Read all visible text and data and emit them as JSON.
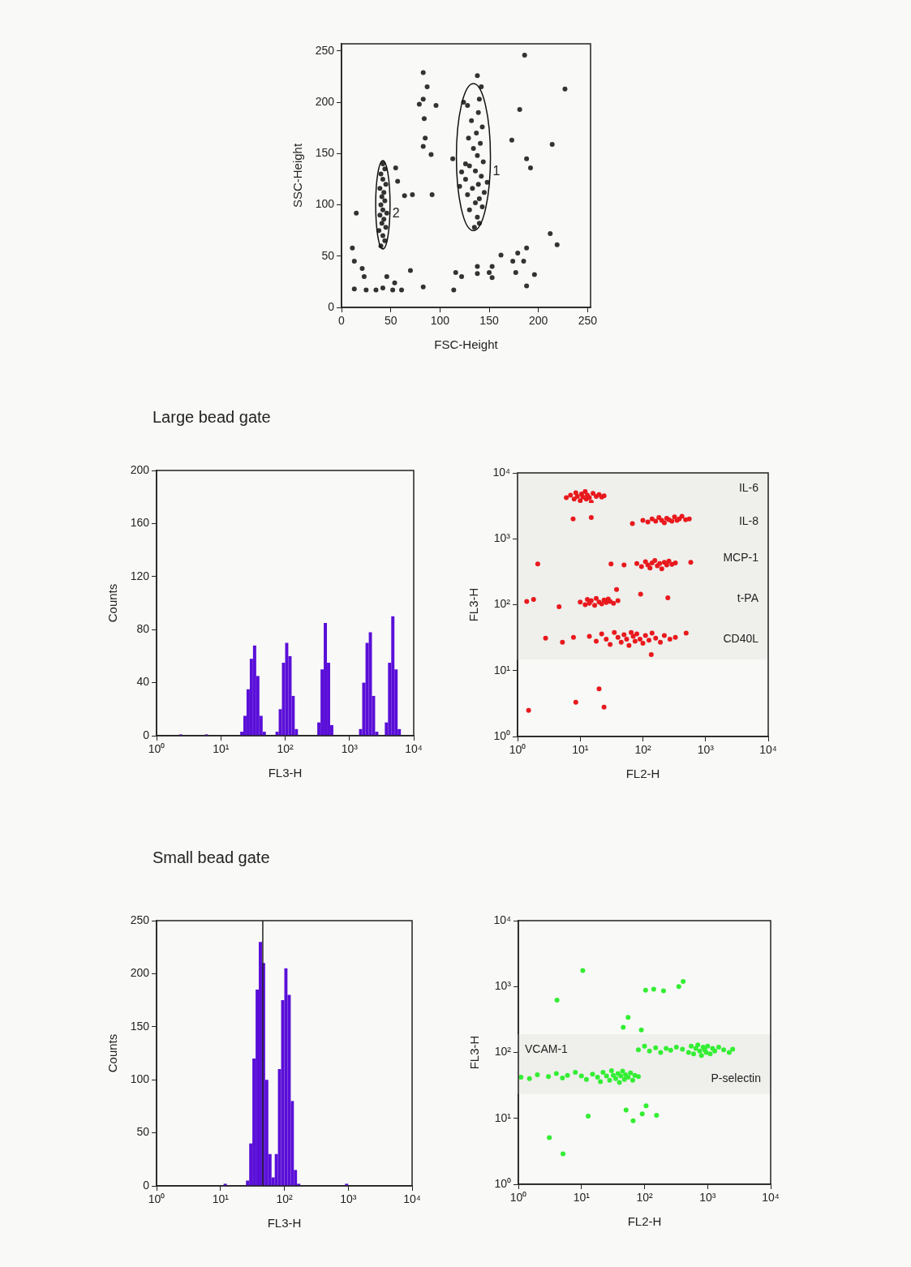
{
  "chart_data": [
    {
      "type": "scatter",
      "xlabel": "FSC-Height",
      "ylabel": "SSC-Height",
      "xlim": [
        0,
        253
      ],
      "ylim": [
        0,
        257
      ],
      "xticks": [
        0,
        50,
        100,
        150,
        200,
        250
      ],
      "yticks": [
        0,
        50,
        100,
        150,
        200,
        250
      ],
      "series": [
        {
          "type": "scatter",
          "marker": "circle",
          "color": "#333333",
          "x": [
            186,
            83,
            138,
            87,
            227,
            79,
            83,
            96,
            181,
            84,
            83,
            85,
            173,
            214,
            91,
            113,
            188,
            192,
            55,
            57,
            92,
            72,
            64,
            15,
            11,
            13,
            21,
            23,
            13,
            25,
            35,
            42,
            46,
            52,
            54,
            61,
            70,
            83,
            114,
            116,
            122,
            138,
            138,
            150,
            153,
            153,
            162,
            174,
            177,
            179,
            185,
            188,
            188,
            196,
            212,
            219
          ],
          "values": [
            246,
            229,
            226,
            215,
            213,
            198,
            203,
            197,
            193,
            184,
            157,
            165,
            163,
            159,
            149,
            145,
            145,
            136,
            136,
            123,
            110,
            110,
            109,
            92,
            58,
            45,
            38,
            30,
            18,
            17,
            17,
            19,
            30,
            17,
            24,
            17,
            36,
            20,
            17,
            34,
            30,
            33,
            40,
            34,
            40,
            29,
            51,
            45,
            34,
            53,
            45,
            58,
            21,
            32,
            72,
            61
          ]
        },
        {
          "type": "scatter",
          "name": "2",
          "marker": "circle",
          "color": "#333333",
          "x": [
            40,
            44,
            42,
            38,
            45,
            41,
            43,
            39,
            46,
            42,
            40,
            44,
            41,
            43,
            39,
            45,
            42,
            40,
            44,
            42
          ],
          "values": [
            60,
            65,
            70,
            75,
            78,
            82,
            86,
            90,
            92,
            95,
            100,
            104,
            108,
            112,
            116,
            120,
            125,
            130,
            135,
            140
          ]
        },
        {
          "type": "scatter",
          "name": "1",
          "marker": "circle",
          "color": "#333333",
          "x": [
            135,
            140,
            138,
            130,
            143,
            136,
            140,
            128,
            145,
            133,
            139,
            126,
            142,
            136,
            130,
            144,
            138,
            134,
            141,
            129,
            137,
            143,
            132,
            139,
            128,
            140,
            124,
            122,
            120,
            126,
            148,
            142
          ],
          "values": [
            78,
            82,
            88,
            95,
            98,
            102,
            106,
            110,
            112,
            116,
            120,
            125,
            128,
            133,
            138,
            142,
            148,
            155,
            160,
            165,
            170,
            176,
            182,
            190,
            197,
            203,
            200,
            132,
            118,
            140,
            122,
            215
          ]
        }
      ]
    },
    {
      "type": "histogram",
      "title": "Large bead gate",
      "xlabel": "FL3-H",
      "ylabel": "Counts",
      "log": "x",
      "color": "#5a0fd8",
      "xlim": [
        1,
        10000
      ],
      "ylim": [
        0,
        200
      ],
      "xticks": [
        {
          "value": 1,
          "label": "10⁰"
        },
        {
          "value": 10,
          "label": "10¹"
        },
        {
          "value": 100,
          "label": "10²"
        },
        {
          "value": 1000,
          "label": "10³"
        },
        {
          "value": 10000,
          "label": "10⁴"
        }
      ],
      "yticks": [
        0,
        40,
        80,
        120,
        160,
        200
      ],
      "bins": [
        1,
        1.12,
        1.26,
        1.41,
        1.58,
        1.78,
        2,
        2.24,
        2.51,
        2.82,
        3.16,
        3.55,
        3.98,
        4.47,
        5.01,
        5.62,
        6.31,
        7.08,
        7.94,
        8.91,
        10,
        11.2,
        12.6,
        14.1,
        15.8,
        17.8,
        20,
        22.4,
        25.1,
        28.2,
        31.6,
        35.5,
        39.8,
        44.7,
        50.1,
        56.2,
        63.1,
        70.8,
        79.4,
        89.1,
        100,
        112,
        126,
        141,
        158,
        178,
        200,
        224,
        251,
        282,
        316,
        355,
        398,
        447,
        501,
        562,
        631,
        708,
        794,
        891,
        1000,
        1120,
        1260,
        1410,
        1580,
        1780,
        2000,
        2240,
        2510,
        2820,
        3160,
        3550,
        3980,
        4470,
        5010,
        5620,
        6310,
        7080,
        7940,
        8910,
        10000
      ],
      "values": [
        0,
        0,
        0,
        0,
        0,
        0,
        0,
        1,
        0,
        0,
        0,
        0,
        0,
        0,
        0,
        1,
        0,
        0,
        0,
        0,
        0,
        0,
        0,
        0,
        0,
        0,
        3,
        15,
        35,
        58,
        68,
        45,
        15,
        3,
        0,
        0,
        0,
        3,
        20,
        55,
        70,
        60,
        30,
        5,
        0,
        0,
        0,
        0,
        0,
        0,
        10,
        50,
        85,
        55,
        8,
        0,
        0,
        0,
        0,
        0,
        0,
        0,
        0,
        5,
        40,
        70,
        78,
        30,
        3,
        0,
        0,
        10,
        55,
        90,
        50,
        5,
        0,
        0,
        0,
        0
      ]
    },
    {
      "type": "scatter",
      "xlabel": "FL2-H",
      "ylabel": "FL3-H",
      "log": "xy",
      "marker": "circle",
      "xlim": [
        1,
        10000
      ],
      "ylim": [
        1,
        10000
      ],
      "xticks": [
        {
          "value": 1,
          "label": "10⁰"
        },
        {
          "value": 10,
          "label": "10¹"
        },
        {
          "value": 100,
          "label": "10²"
        },
        {
          "value": 1000,
          "label": "10³"
        },
        {
          "value": 10000,
          "label": "10⁴"
        }
      ],
      "yticks": [
        {
          "value": 1,
          "label": "10⁰"
        },
        {
          "value": 10,
          "label": "10¹"
        },
        {
          "value": 100,
          "label": "10²"
        },
        {
          "value": 1000,
          "label": "10³"
        },
        {
          "value": 10000,
          "label": "10⁴"
        }
      ],
      "series": [
        {
          "type": "scatter",
          "color": "#e8191d",
          "x": [
            6,
            7,
            8,
            8.5,
            9,
            10,
            10.5,
            11,
            12,
            12.5,
            13,
            14,
            15,
            16,
            18,
            20,
            22,
            24
          ],
          "values": [
            4200,
            4600,
            4000,
            5000,
            4400,
            3800,
            4800,
            4300,
            5200,
            4000,
            4600,
            4200,
            3600,
            4900,
            4400,
            4700,
            4300,
            4500
          ]
        },
        {
          "type": "scatter",
          "color": "#e8191d",
          "x": [
            100,
            120,
            140,
            160,
            180,
            200,
            220,
            240,
            260,
            290,
            320,
            350,
            380,
            420,
            480,
            550
          ],
          "values": [
            1900,
            1800,
            2000,
            1850,
            2100,
            1900,
            1750,
            2050,
            1950,
            1850,
            2150,
            1900,
            2000,
            2200,
            1950,
            2000
          ]
        },
        {
          "type": "scatter",
          "color": "#e8191d",
          "x": [
            80,
            95,
            110,
            120,
            130,
            140,
            155,
            170,
            185,
            200,
            220,
            240,
            260,
            290,
            330
          ],
          "values": [
            420,
            380,
            450,
            400,
            360,
            430,
            470,
            390,
            420,
            350,
            440,
            400,
            460,
            410,
            430
          ]
        },
        {
          "type": "scatter",
          "color": "#e8191d",
          "x": [
            10,
            12,
            13,
            14,
            15,
            17,
            18,
            20,
            22,
            24,
            26,
            28,
            30,
            34,
            40
          ],
          "values": [
            110,
            100,
            120,
            105,
            115,
            98,
            125,
            110,
            103,
            118,
            108,
            122,
            112,
            105,
            115
          ]
        },
        {
          "type": "scatter",
          "color": "#e8191d",
          "x": [
            14,
            18,
            22,
            26,
            30,
            35,
            40,
            45,
            50,
            55,
            60,
            65,
            70,
            75,
            80,
            90,
            100,
            110,
            125,
            140,
            160,
            190,
            220,
            270,
            330
          ],
          "values": [
            33,
            28,
            36,
            30,
            25,
            38,
            32,
            27,
            35,
            30,
            24,
            38,
            33,
            28,
            36,
            30,
            26,
            34,
            29,
            37,
            31,
            27,
            34,
            30,
            32
          ]
        },
        {
          "type": "scatter",
          "color": "#e8191d",
          "x": [
            1.5,
            8.5,
            20,
            24,
            7.7,
            15,
            68,
            2.1,
            31,
            50,
            1.4,
            1.8,
            4.6,
            38,
            92,
            250,
            2.8,
            5.2,
            7.8,
            490,
            136,
            580
          ],
          "values": [
            2.5,
            3.3,
            5.3,
            2.8,
            2000,
            2100,
            1700,
            415,
            415,
            400,
            112,
            120,
            93,
            170,
            145,
            127,
            31,
            27,
            32,
            37,
            17.5,
            440
          ]
        }
      ],
      "bands": [
        {
          "axis": "y",
          "from": 3400,
          "to": 10000,
          "label": "IL-6",
          "color": "#efefec"
        },
        {
          "axis": "y",
          "from": 1000,
          "to": 3400,
          "label": "IL-8",
          "color": "#efefec"
        },
        {
          "axis": "y",
          "from": 260,
          "to": 1000,
          "label": "MCP-1",
          "color": "#efefec"
        },
        {
          "axis": "y",
          "from": 58,
          "to": 260,
          "label": "t-PA",
          "color": "#efefec"
        },
        {
          "axis": "y",
          "from": 15,
          "to": 58,
          "label": "CD40L",
          "color": "#efefec"
        }
      ]
    },
    {
      "type": "histogram",
      "title": "Small bead gate",
      "xlabel": "FL3-H",
      "ylabel": "Counts",
      "log": "x",
      "color": "#5a0fd8",
      "xlim": [
        1,
        10000
      ],
      "ylim": [
        0,
        250
      ],
      "xticks": [
        {
          "value": 1,
          "label": "10⁰"
        },
        {
          "value": 10,
          "label": "10¹"
        },
        {
          "value": 100,
          "label": "10²"
        },
        {
          "value": 1000,
          "label": "10³"
        },
        {
          "value": 10000,
          "label": "10⁴"
        }
      ],
      "yticks": [
        0,
        50,
        100,
        150,
        200,
        250
      ],
      "bins": [
        1,
        1.12,
        1.26,
        1.41,
        1.58,
        1.78,
        2,
        2.24,
        2.51,
        2.82,
        3.16,
        3.55,
        3.98,
        4.47,
        5.01,
        5.62,
        6.31,
        7.08,
        7.94,
        8.91,
        10,
        11.2,
        12.6,
        14.1,
        15.8,
        17.8,
        20,
        22.4,
        25.1,
        28.2,
        31.6,
        35.5,
        39.8,
        44.7,
        50.1,
        56.2,
        63.1,
        70.8,
        79.4,
        89.1,
        100,
        112,
        126,
        141,
        158,
        178,
        200,
        224,
        251,
        282,
        316,
        355,
        398,
        447,
        501,
        562,
        631,
        708,
        794,
        891,
        1000,
        1120,
        1260,
        1410,
        1580,
        1780,
        2000,
        2240,
        2510,
        2820,
        3160,
        3550,
        3980,
        4470,
        5010,
        5620,
        6310,
        7080,
        7940,
        8910,
        10000
      ],
      "values": [
        0,
        0,
        0,
        0,
        0,
        0,
        0,
        0,
        0,
        0,
        0,
        0,
        0,
        0,
        0,
        0,
        0,
        0,
        0,
        0,
        0,
        2,
        0,
        0,
        0,
        0,
        0,
        0,
        5,
        40,
        120,
        185,
        230,
        210,
        100,
        30,
        8,
        30,
        110,
        175,
        205,
        180,
        80,
        15,
        2,
        0,
        0,
        0,
        0,
        0,
        0,
        0,
        0,
        0,
        0,
        0,
        0,
        0,
        0,
        2,
        0,
        0,
        0,
        0,
        0,
        0,
        0,
        0,
        0,
        0,
        0,
        0,
        0,
        0,
        0,
        0,
        0,
        0,
        0,
        0
      ],
      "ref_lines": [
        {
          "axis": "x",
          "value": 46
        }
      ]
    },
    {
      "type": "scatter",
      "xlabel": "FL2-H",
      "ylabel": "FL3-H",
      "log": "xy",
      "marker": "circle",
      "xlim": [
        1,
        10000
      ],
      "ylim": [
        1,
        10000
      ],
      "xticks": [
        {
          "value": 1,
          "label": "10⁰"
        },
        {
          "value": 10,
          "label": "10¹"
        },
        {
          "value": 100,
          "label": "10²"
        },
        {
          "value": 1000,
          "label": "10³"
        },
        {
          "value": 10000,
          "label": "10⁴"
        }
      ],
      "yticks": [
        {
          "value": 1,
          "label": "10⁰"
        },
        {
          "value": 10,
          "label": "10¹"
        },
        {
          "value": 100,
          "label": "10²"
        },
        {
          "value": 1000,
          "label": "10³"
        },
        {
          "value": 10000,
          "label": "10⁴"
        }
      ],
      "series": [
        {
          "type": "scatter",
          "color": "#33ee33",
          "x": [
            80,
            100,
            120,
            150,
            180,
            220,
            260,
            320,
            400,
            500,
            550,
            600,
            650,
            700,
            750,
            800,
            850,
            900,
            950,
            1000,
            1100,
            1200,
            1300,
            1500,
            1800,
            2200,
            2500
          ],
          "values": [
            110,
            125,
            105,
            118,
            100,
            115,
            108,
            120,
            112,
            100,
            125,
            95,
            115,
            130,
            105,
            90,
            120,
            110,
            100,
            125,
            95,
            115,
            105,
            120,
            110,
            100,
            112
          ]
        },
        {
          "type": "scatter",
          "color": "#33ee33",
          "x": [
            1.1,
            1.5,
            2,
            3,
            4,
            5,
            6,
            8,
            10,
            12,
            15,
            18,
            20,
            22,
            25,
            28,
            30,
            32,
            35,
            38,
            40,
            42,
            45,
            48,
            50,
            55,
            60,
            65,
            70,
            80
          ],
          "values": [
            42,
            40,
            46,
            43,
            48,
            41,
            45,
            50,
            44,
            39,
            47,
            42,
            36,
            50,
            44,
            38,
            53,
            45,
            40,
            48,
            35,
            44,
            52,
            39,
            46,
            42,
            49,
            38,
            45,
            43
          ]
        },
        {
          "type": "scatter",
          "color": "#33ee33",
          "x": [
            10.5,
            4.1,
            104,
            140,
            200,
            350,
            410,
            55,
            46,
            89,
            12.8,
            51,
            106,
            92,
            155,
            66,
            3.1,
            5.1
          ],
          "values": [
            1750,
            620,
            880,
            910,
            860,
            1000,
            1190,
            340,
            240,
            220,
            10.8,
            13.4,
            15.5,
            11.7,
            11.1,
            9.2,
            5.1,
            2.9
          ]
        }
      ],
      "bands": [
        {
          "axis": "y",
          "from": 64,
          "to": 185,
          "label": "VCAM-1",
          "color": "#efefec"
        },
        {
          "axis": "y",
          "from": 24,
          "to": 64,
          "label": "P-selectin",
          "color": "#efefec"
        }
      ]
    }
  ]
}
